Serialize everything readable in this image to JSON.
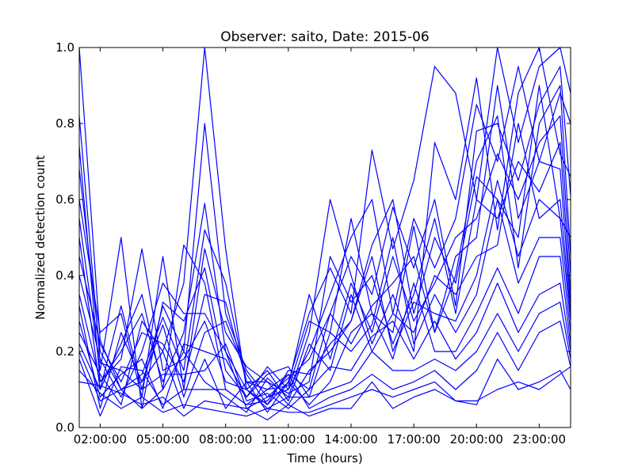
{
  "chart_data": {
    "type": "line",
    "title": "Observer: saito, Date: 2015-06",
    "xlabel": "Time (hours)",
    "ylabel": "Normalized detection count",
    "xlim": [
      1.0,
      24.5
    ],
    "ylim": [
      0.0,
      1.0
    ],
    "x_ticks": [
      2,
      5,
      8,
      11,
      14,
      17,
      20,
      23
    ],
    "x_tick_labels": [
      "02:00:00",
      "05:00:00",
      "08:00:00",
      "11:00:00",
      "14:00:00",
      "17:00:00",
      "20:00:00",
      "23:00:00"
    ],
    "y_ticks": [
      0.0,
      0.2,
      0.4,
      0.6,
      0.8,
      1.0
    ],
    "y_tick_labels": [
      "0.0",
      "0.2",
      "0.4",
      "0.6",
      "0.8",
      "1.0"
    ],
    "grid": false,
    "line_color": "#0000ff",
    "x": [
      1,
      2,
      3,
      4,
      5,
      6,
      7,
      8,
      9,
      10,
      11,
      12,
      13,
      14,
      15,
      16,
      17,
      18,
      19,
      20,
      21,
      22,
      23,
      24,
      24.5
    ],
    "series": [
      {
        "values": [
          1.0,
          0.23,
          0.1,
          0.12,
          0.2,
          0.38,
          1.0,
          0.47,
          0.1,
          0.06,
          0.12,
          0.3,
          0.42,
          0.3,
          0.73,
          0.47,
          0.65,
          0.95,
          0.88,
          0.6,
          1.0,
          0.75,
          0.95,
          1.0,
          0.88
        ]
      },
      {
        "values": [
          0.82,
          0.17,
          0.15,
          0.1,
          0.32,
          0.2,
          0.8,
          0.3,
          0.15,
          0.08,
          0.1,
          0.2,
          0.35,
          0.5,
          0.6,
          0.3,
          0.55,
          0.42,
          0.55,
          0.85,
          0.7,
          0.95,
          0.7,
          0.88,
          0.8
        ]
      },
      {
        "values": [
          0.74,
          0.12,
          0.2,
          0.3,
          0.12,
          0.25,
          0.59,
          0.2,
          0.1,
          0.05,
          0.08,
          0.25,
          0.6,
          0.4,
          0.22,
          0.35,
          0.2,
          0.75,
          0.6,
          0.92,
          0.52,
          0.88,
          1.0,
          0.72,
          0.66
        ]
      },
      {
        "values": [
          0.68,
          0.2,
          0.1,
          0.14,
          0.29,
          0.15,
          0.52,
          0.38,
          0.12,
          0.1,
          0.14,
          0.1,
          0.3,
          0.45,
          0.35,
          0.58,
          0.42,
          0.6,
          0.32,
          0.78,
          0.8,
          0.65,
          0.85,
          0.95,
          0.61
        ]
      },
      {
        "values": [
          0.6,
          0.25,
          0.3,
          0.08,
          0.45,
          0.1,
          0.47,
          0.25,
          0.16,
          0.12,
          0.06,
          0.15,
          0.2,
          0.28,
          0.48,
          0.6,
          0.3,
          0.5,
          0.38,
          0.66,
          0.6,
          0.5,
          0.9,
          0.55,
          0.5
        ]
      },
      {
        "values": [
          0.55,
          0.15,
          0.5,
          0.05,
          0.33,
          0.28,
          0.42,
          0.15,
          0.08,
          0.14,
          0.16,
          0.08,
          0.25,
          0.55,
          0.3,
          0.25,
          0.53,
          0.25,
          0.4,
          0.7,
          0.82,
          0.42,
          0.8,
          0.9,
          0.45
        ]
      },
      {
        "values": [
          0.5,
          0.1,
          0.22,
          0.35,
          0.1,
          0.48,
          0.38,
          0.1,
          0.06,
          0.1,
          0.11,
          0.35,
          0.18,
          0.38,
          0.25,
          0.45,
          0.28,
          0.38,
          0.5,
          0.55,
          0.72,
          0.6,
          0.75,
          0.82,
          0.4
        ]
      },
      {
        "values": [
          0.45,
          0.22,
          0.12,
          0.25,
          0.22,
          0.12,
          0.35,
          0.33,
          0.12,
          0.12,
          0.09,
          0.12,
          0.45,
          0.33,
          0.4,
          0.22,
          0.35,
          0.55,
          0.3,
          0.6,
          0.55,
          0.7,
          0.62,
          0.75,
          0.35
        ]
      },
      {
        "values": [
          0.4,
          0.18,
          0.08,
          0.2,
          0.38,
          0.3,
          0.3,
          0.2,
          0.05,
          0.08,
          0.13,
          0.18,
          0.3,
          0.22,
          0.32,
          0.38,
          0.45,
          0.25,
          0.45,
          0.5,
          0.9,
          0.55,
          0.7,
          0.68,
          0.32
        ]
      },
      {
        "values": [
          0.35,
          0.12,
          0.18,
          0.47,
          0.15,
          0.18,
          0.28,
          0.12,
          0.1,
          0.15,
          0.07,
          0.22,
          0.15,
          0.35,
          0.2,
          0.3,
          0.25,
          0.4,
          0.35,
          0.45,
          0.48,
          0.8,
          0.55,
          0.6,
          0.3
        ]
      },
      {
        "values": [
          0.32,
          0.05,
          0.25,
          0.12,
          0.27,
          0.08,
          0.25,
          0.28,
          0.14,
          0.06,
          0.15,
          0.14,
          0.22,
          0.28,
          0.45,
          0.2,
          0.33,
          0.3,
          0.28,
          0.4,
          0.65,
          0.45,
          0.6,
          0.55,
          0.28
        ]
      },
      {
        "values": [
          0.28,
          0.08,
          0.14,
          0.18,
          0.05,
          0.22,
          0.2,
          0.18,
          0.08,
          0.16,
          0.1,
          0.28,
          0.25,
          0.2,
          0.27,
          0.5,
          0.22,
          0.35,
          0.25,
          0.35,
          0.6,
          0.38,
          0.5,
          0.5,
          0.25
        ]
      },
      {
        "values": [
          0.25,
          0.14,
          0.06,
          0.28,
          0.2,
          0.05,
          0.18,
          0.05,
          0.12,
          0.04,
          0.12,
          0.06,
          0.12,
          0.25,
          0.3,
          0.18,
          0.38,
          0.2,
          0.2,
          0.3,
          0.42,
          0.3,
          0.45,
          0.45,
          0.22
        ]
      },
      {
        "values": [
          0.22,
          0.1,
          0.32,
          0.1,
          0.14,
          0.14,
          0.15,
          0.22,
          0.07,
          0.09,
          0.05,
          0.1,
          0.16,
          0.15,
          0.24,
          0.28,
          0.18,
          0.28,
          0.18,
          0.25,
          0.38,
          0.25,
          0.35,
          0.38,
          0.2
        ]
      },
      {
        "values": [
          0.2,
          0.07,
          0.1,
          0.05,
          0.1,
          0.2,
          0.12,
          0.08,
          0.04,
          0.13,
          0.08,
          0.08,
          0.1,
          0.12,
          0.2,
          0.15,
          0.15,
          0.18,
          0.15,
          0.2,
          0.3,
          0.2,
          0.3,
          0.33,
          0.18
        ]
      },
      {
        "values": [
          0.18,
          0.03,
          0.16,
          0.15,
          0.06,
          0.1,
          0.1,
          0.1,
          0.06,
          0.07,
          0.14,
          0.05,
          0.08,
          0.1,
          0.14,
          0.1,
          0.12,
          0.15,
          0.1,
          0.15,
          0.25,
          0.15,
          0.25,
          0.28,
          0.16
        ]
      },
      {
        "values": [
          0.15,
          0.09,
          0.05,
          0.08,
          0.04,
          0.06,
          0.05,
          0.04,
          0.03,
          0.05,
          0.04,
          0.04,
          0.06,
          0.08,
          0.1,
          0.08,
          0.1,
          0.12,
          0.07,
          0.07,
          0.1,
          0.12,
          0.1,
          0.14,
          0.16
        ]
      },
      {
        "values": [
          0.12,
          0.11,
          0.09,
          0.06,
          0.08,
          0.03,
          0.07,
          0.06,
          0.05,
          0.02,
          0.06,
          0.03,
          0.05,
          0.05,
          0.12,
          0.05,
          0.08,
          0.1,
          0.07,
          0.06,
          0.18,
          0.1,
          0.12,
          0.15,
          0.1
        ]
      }
    ]
  }
}
